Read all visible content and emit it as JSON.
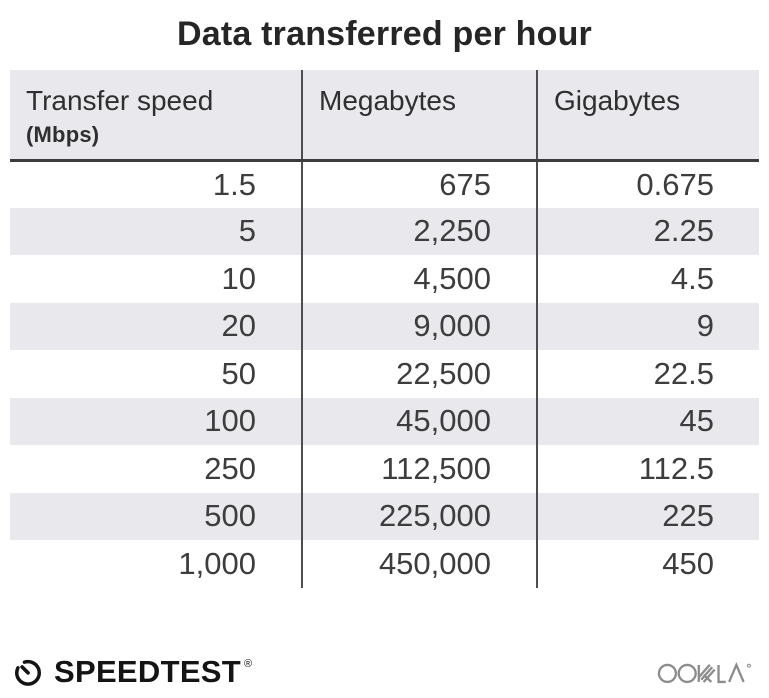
{
  "title": "Data transferred per hour",
  "table": {
    "columns": [
      {
        "label": "Transfer speed",
        "sublabel": "(Mbps)"
      },
      {
        "label": "Megabytes",
        "sublabel": ""
      },
      {
        "label": "Gigabytes",
        "sublabel": ""
      }
    ],
    "column_keys": [
      "transfer-speed-mbps",
      "megabytes",
      "gigabytes"
    ],
    "rows": [
      [
        "1.5",
        "675",
        "0.675"
      ],
      [
        "5",
        "2,250",
        "2.25"
      ],
      [
        "10",
        "4,500",
        "4.5"
      ],
      [
        "20",
        "9,000",
        "9"
      ],
      [
        "50",
        "22,500",
        "22.5"
      ],
      [
        "100",
        "45,000",
        "45"
      ],
      [
        "250",
        "112,500",
        "112.5"
      ],
      [
        "500",
        "225,000",
        "225"
      ],
      [
        "1,000",
        "450,000",
        "450"
      ]
    ]
  },
  "chart_data": {
    "type": "table",
    "title": "Data transferred per hour",
    "columns": [
      "Transfer speed (Mbps)",
      "Megabytes",
      "Gigabytes"
    ],
    "rows": [
      [
        1.5,
        675,
        0.675
      ],
      [
        5,
        2250,
        2.25
      ],
      [
        10,
        4500,
        4.5
      ],
      [
        20,
        9000,
        9
      ],
      [
        50,
        22500,
        22.5
      ],
      [
        100,
        45000,
        45
      ],
      [
        250,
        112500,
        112.5
      ],
      [
        500,
        225000,
        225
      ],
      [
        1000,
        450000,
        450
      ]
    ],
    "layout_hints": {
      "zebra_striping": true,
      "column_dividers": true,
      "value_alignment": "right"
    }
  },
  "footer": {
    "speedtest_label": "SPEEDTEST",
    "speedtest_reg_mark": "®",
    "ookla_label": "OOKLA"
  },
  "colors": {
    "background": "#ffffff",
    "header_bg": "#e9e8ec",
    "stripe_bg": "#e9e8ec",
    "divider": "#4d4d4d",
    "header_border": "#3c3c3c",
    "title_text": "#262626",
    "header_text": "#2f2f2f",
    "cell_text": "#3d3d3d",
    "ookla_gray": "#8c8c8c",
    "logo_black": "#141414"
  }
}
